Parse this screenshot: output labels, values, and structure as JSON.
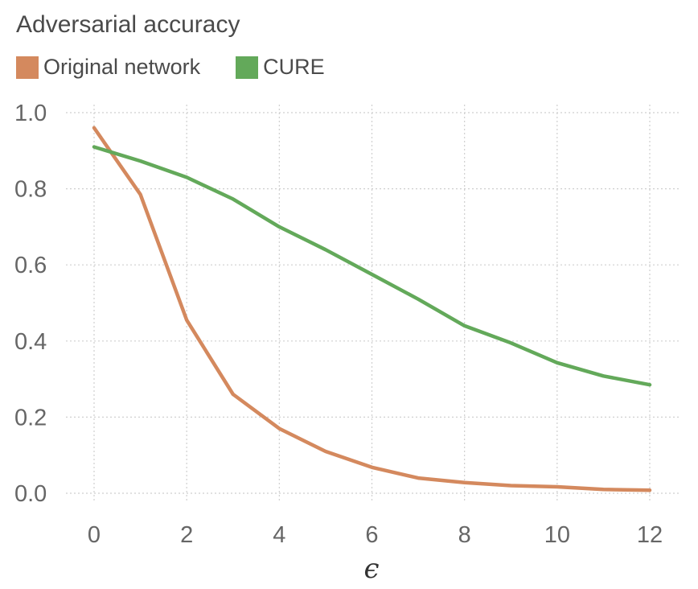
{
  "chart_data": {
    "type": "line",
    "title": "Adversarial accuracy",
    "xlabel": "ϵ",
    "ylabel": "",
    "xlim": [
      0,
      12
    ],
    "ylim": [
      0,
      1
    ],
    "x_ticks": [
      "0",
      "2",
      "4",
      "6",
      "8",
      "10",
      "12"
    ],
    "y_ticks": [
      "0.0",
      "0.2",
      "0.4",
      "0.6",
      "0.8",
      "1.0"
    ],
    "grid": true,
    "legend_position": "top-left",
    "x": [
      0,
      1,
      2,
      3,
      4,
      5,
      6,
      7,
      8,
      9,
      10,
      11,
      12
    ],
    "series": [
      {
        "name": "Original network",
        "color": "#d4895e",
        "values": [
          0.96,
          0.785,
          0.455,
          0.26,
          0.17,
          0.11,
          0.068,
          0.04,
          0.028,
          0.02,
          0.017,
          0.01,
          0.008
        ]
      },
      {
        "name": "CURE",
        "color": "#63a95a",
        "values": [
          0.91,
          0.873,
          0.83,
          0.773,
          0.7,
          0.64,
          0.575,
          0.51,
          0.44,
          0.395,
          0.343,
          0.308,
          0.285
        ]
      }
    ]
  }
}
